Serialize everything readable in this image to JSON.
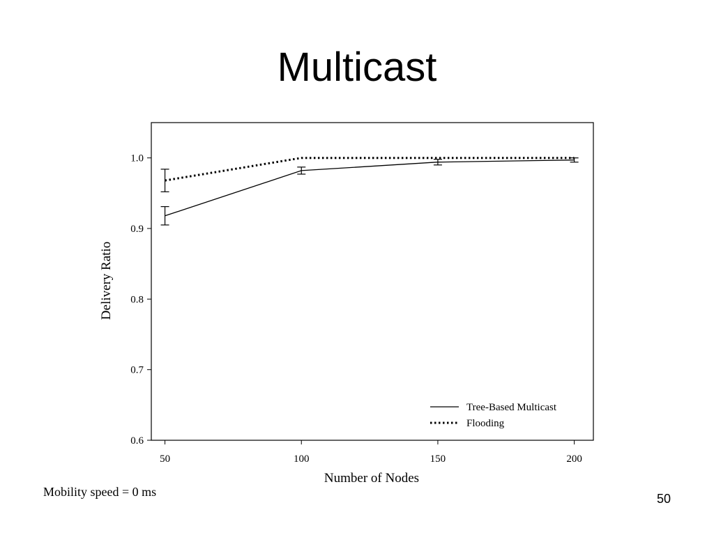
{
  "slide": {
    "title": "Multicast",
    "note": "Mobility speed = 0 ms",
    "page_number": "50"
  },
  "chart_data": {
    "type": "line",
    "title": "",
    "xlabel": "Number of Nodes",
    "ylabel": "Delivery Ratio",
    "x": [
      50,
      100,
      150,
      200
    ],
    "xticks": [
      "50",
      "100",
      "150",
      "200"
    ],
    "yticks": [
      "0.6",
      "0.7",
      "0.8",
      "0.9",
      "1.0"
    ],
    "ytick_values": [
      0.6,
      0.7,
      0.8,
      0.9,
      1.0
    ],
    "xlim": [
      45,
      207
    ],
    "ylim": [
      0.6,
      1.05
    ],
    "grid": false,
    "legend_position": "bottom-right",
    "series": [
      {
        "name": "Tree-Based Multicast",
        "style": "solid",
        "values": [
          0.918,
          0.982,
          0.994,
          0.997
        ],
        "error": [
          0.013,
          0.005,
          0.004,
          0.003
        ]
      },
      {
        "name": "Flooding",
        "style": "dotted",
        "values": [
          0.968,
          1.0,
          1.0,
          1.0
        ],
        "error": [
          0.016,
          0.0,
          0.0,
          0.0
        ]
      }
    ]
  }
}
